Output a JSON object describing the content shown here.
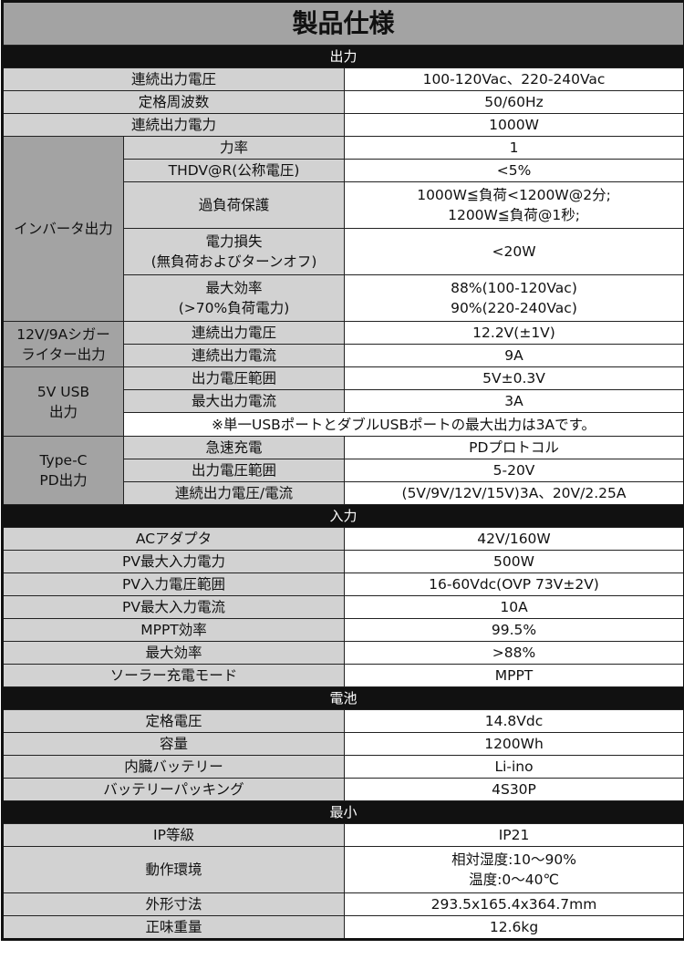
{
  "title": "製品仕様",
  "sections": {
    "output": "出力",
    "input": "入力",
    "battery": "電池",
    "minimum": "最小"
  },
  "output_rows": [
    {
      "label": "連続出力電圧",
      "value": "100-120Vac、220-240Vac"
    },
    {
      "label": "定格周波数",
      "value": "50/60Hz"
    },
    {
      "label": "連続出力電力",
      "value": "1000W"
    }
  ],
  "inverter": {
    "group": "インバータ出力",
    "rows": [
      {
        "label": "力率",
        "value": "1"
      },
      {
        "label": "THDV@R(公称電圧)",
        "value": "<5%"
      },
      {
        "label": "過負荷保護",
        "value": "1000W≦負荷<1200W@2分;",
        "value2": "1200W≦負荷@1秒;"
      },
      {
        "label": "電力損失",
        "label2": "(無負荷およびターンオフ)",
        "value": "<20W"
      },
      {
        "label": "最大効率",
        "label2": "(>70%負荷電力)",
        "value": "88%(100-120Vac)",
        "value2": "90%(220-240Vac)"
      }
    ]
  },
  "cigar": {
    "group": "12V/9Aシガー",
    "group2": "ライター出力",
    "rows": [
      {
        "label": "連続出力電圧",
        "value": "12.2V(±1V)"
      },
      {
        "label": "連続出力電流",
        "value": "9A"
      }
    ]
  },
  "usb": {
    "group": "5V USB",
    "group2": "出力",
    "rows": [
      {
        "label": "出力電圧範囲",
        "value": "5V±0.3V"
      },
      {
        "label": "最大出力電流",
        "value": "3A"
      }
    ],
    "note": "※単一USBポートとダブルUSBポートの最大出力は3Aです。"
  },
  "typec": {
    "group": "Type-C",
    "group2": "PD出力",
    "rows": [
      {
        "label": "急速充電",
        "value": "PDプロトコル"
      },
      {
        "label": "出力電圧範囲",
        "value": "5-20V"
      },
      {
        "label": "連続出力電圧/電流",
        "value": "(5V/9V/12V/15V)3A、20V/2.25A"
      }
    ]
  },
  "input_rows": [
    {
      "label": "ACアダプタ",
      "value": "42V/160W"
    },
    {
      "label": "PV最大入力電力",
      "value": "500W"
    },
    {
      "label": "PV入力電圧範囲",
      "value": "16-60Vdc(OVP 73V±2V)"
    },
    {
      "label": "PV最大入力電流",
      "value": "10A"
    },
    {
      "label": "MPPT効率",
      "value": "99.5%"
    },
    {
      "label": "最大効率",
      "value": ">88%"
    },
    {
      "label": "ソーラー充電モード",
      "value": "MPPT"
    }
  ],
  "battery_rows": [
    {
      "label": "定格電圧",
      "value": "14.8Vdc"
    },
    {
      "label": "容量",
      "value": "1200Wh"
    },
    {
      "label": "内臓バッテリー",
      "value": "Li-ino"
    },
    {
      "label": "バッテリーパッキング",
      "value": "4S30P"
    }
  ],
  "minimum_rows": [
    {
      "label": "IP等級",
      "value": "IP21"
    },
    {
      "label": "動作環境",
      "value": "相対湿度:10～90%",
      "value2": "温度:0～40℃"
    },
    {
      "label": "外形寸法",
      "value": "293.5x165.4x364.7mm"
    },
    {
      "label": "正味重量",
      "value": "12.6kg"
    }
  ],
  "colors": {
    "header_gray": "#a3a3a3",
    "label_gray": "#d2d2d2",
    "section_black": "#111111"
  }
}
